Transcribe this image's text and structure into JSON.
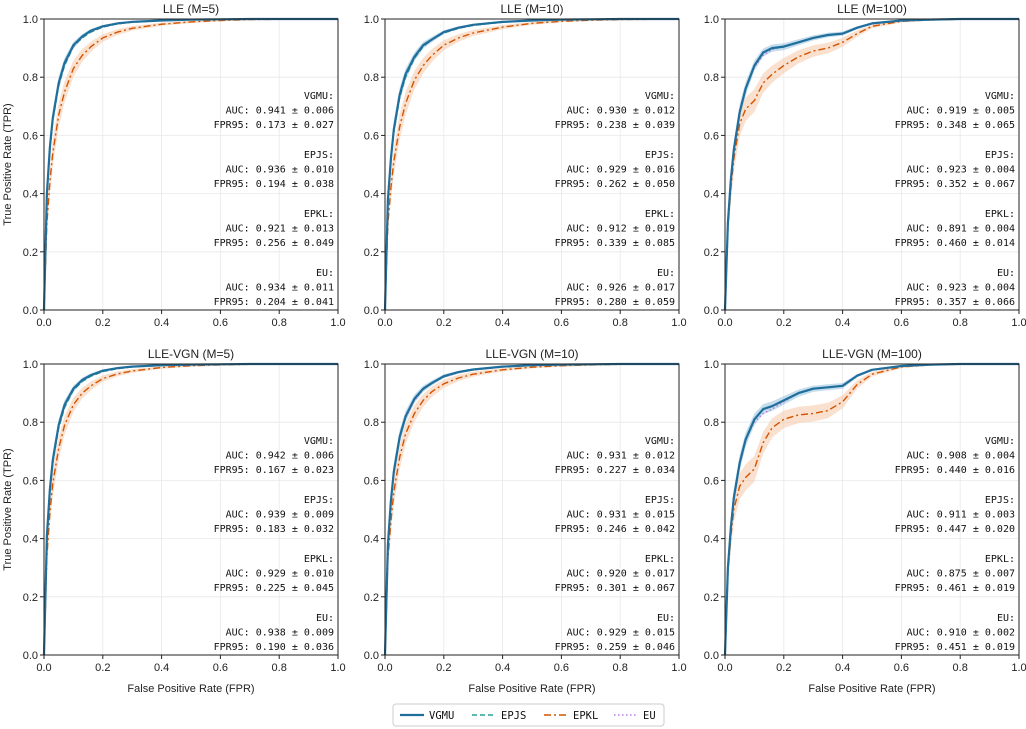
{
  "figure": {
    "legend": [
      {
        "key": "VGMU",
        "label": "VGMU",
        "color": "#1f6e9c",
        "dash": "",
        "width": 2.2
      },
      {
        "key": "EPJS",
        "label": "EPJS",
        "color": "#2aa198",
        "dash": "5,3",
        "width": 1.4
      },
      {
        "key": "EPKL",
        "label": "EPKL",
        "color": "#d35400",
        "dash": "7,3,2,3",
        "width": 1.4
      },
      {
        "key": "EU",
        "label": "EU",
        "color": "#b57edc",
        "dash": "1.5,2.5",
        "width": 1.4
      }
    ],
    "band_colors": {
      "VGMU": "#7fb3d5",
      "EPKL": "#f5c6a5"
    }
  },
  "chart_data": [
    {
      "type": "line",
      "title": "LLE (M=5)",
      "xlabel": "",
      "ylabel": "True Positive Rate (TPR)",
      "xlim": [
        0,
        1
      ],
      "ylim": [
        0,
        1
      ],
      "xticks": [
        "0.0",
        "0.2",
        "0.4",
        "0.6",
        "0.8",
        "1.0"
      ],
      "yticks": [
        "0.0",
        "0.2",
        "0.4",
        "0.6",
        "0.8",
        "1.0"
      ],
      "grid": true,
      "x": [
        0,
        0.01,
        0.02,
        0.03,
        0.05,
        0.07,
        0.1,
        0.13,
        0.16,
        0.2,
        0.25,
        0.3,
        0.4,
        0.5,
        0.6,
        0.7,
        0.8,
        0.9,
        1.0
      ],
      "series": [
        {
          "name": "VGMU",
          "values": [
            0,
            0.4,
            0.56,
            0.66,
            0.78,
            0.85,
            0.91,
            0.94,
            0.96,
            0.975,
            0.985,
            0.99,
            0.995,
            0.998,
            0.999,
            1,
            1,
            1,
            1
          ]
        },
        {
          "name": "EPJS",
          "values": [
            0,
            0.39,
            0.55,
            0.65,
            0.77,
            0.84,
            0.905,
            0.935,
            0.955,
            0.972,
            0.983,
            0.989,
            0.995,
            0.998,
            0.999,
            1,
            1,
            1,
            1
          ]
        },
        {
          "name": "EPKL",
          "values": [
            0,
            0.3,
            0.44,
            0.54,
            0.67,
            0.75,
            0.83,
            0.875,
            0.905,
            0.935,
            0.955,
            0.968,
            0.982,
            0.99,
            0.995,
            0.998,
            0.999,
            1,
            1
          ]
        },
        {
          "name": "EU",
          "values": [
            0,
            0.4,
            0.555,
            0.655,
            0.775,
            0.845,
            0.905,
            0.935,
            0.955,
            0.972,
            0.983,
            0.989,
            0.995,
            0.998,
            0.999,
            1,
            1,
            1,
            1
          ]
        }
      ],
      "stats": [
        {
          "method": "VGMU:",
          "auc": "AUC:   0.941 ± 0.006",
          "fpr95": "FPR95: 0.173 ± 0.027"
        },
        {
          "method": "EPJS:",
          "auc": "AUC:   0.936 ± 0.010",
          "fpr95": "FPR95: 0.194 ± 0.038"
        },
        {
          "method": "EPKL:",
          "auc": "AUC:   0.921 ± 0.013",
          "fpr95": "FPR95: 0.256 ± 0.049"
        },
        {
          "method": "EU:",
          "auc": "AUC:   0.934 ± 0.011",
          "fpr95": "FPR95: 0.204 ± 0.041"
        }
      ]
    },
    {
      "type": "line",
      "title": "LLE (M=10)",
      "xlabel": "",
      "ylabel": "",
      "xlim": [
        0,
        1
      ],
      "ylim": [
        0,
        1
      ],
      "xticks": [
        "0.0",
        "0.2",
        "0.4",
        "0.6",
        "0.8",
        "1.0"
      ],
      "yticks": [
        "0.0",
        "0.2",
        "0.4",
        "0.6",
        "0.8",
        "1.0"
      ],
      "grid": true,
      "x": [
        0,
        0.01,
        0.02,
        0.03,
        0.05,
        0.07,
        0.1,
        0.13,
        0.16,
        0.2,
        0.25,
        0.3,
        0.4,
        0.5,
        0.6,
        0.7,
        0.8,
        0.9,
        1.0
      ],
      "series": [
        {
          "name": "VGMU",
          "values": [
            0,
            0.38,
            0.52,
            0.62,
            0.74,
            0.81,
            0.87,
            0.91,
            0.93,
            0.955,
            0.97,
            0.98,
            0.99,
            0.995,
            0.998,
            0.999,
            1,
            1,
            1
          ]
        },
        {
          "name": "EPJS",
          "values": [
            0,
            0.37,
            0.51,
            0.61,
            0.73,
            0.8,
            0.865,
            0.905,
            0.93,
            0.952,
            0.968,
            0.978,
            0.989,
            0.995,
            0.998,
            0.999,
            1,
            1,
            1
          ]
        },
        {
          "name": "EPKL",
          "values": [
            0,
            0.3,
            0.42,
            0.51,
            0.63,
            0.71,
            0.79,
            0.84,
            0.875,
            0.91,
            0.935,
            0.952,
            0.972,
            0.985,
            0.992,
            0.996,
            0.998,
            0.999,
            1
          ]
        },
        {
          "name": "EU",
          "values": [
            0,
            0.37,
            0.515,
            0.615,
            0.735,
            0.805,
            0.865,
            0.905,
            0.928,
            0.952,
            0.968,
            0.978,
            0.989,
            0.995,
            0.998,
            0.999,
            1,
            1,
            1
          ]
        }
      ],
      "stats": [
        {
          "method": "VGMU:",
          "auc": "AUC:   0.930 ± 0.012",
          "fpr95": "FPR95: 0.238 ± 0.039"
        },
        {
          "method": "EPJS:",
          "auc": "AUC:   0.929 ± 0.016",
          "fpr95": "FPR95: 0.262 ± 0.050"
        },
        {
          "method": "EPKL:",
          "auc": "AUC:   0.912 ± 0.019",
          "fpr95": "FPR95: 0.339 ± 0.085"
        },
        {
          "method": "EU:",
          "auc": "AUC:   0.926 ± 0.017",
          "fpr95": "FPR95: 0.280 ± 0.059"
        }
      ]
    },
    {
      "type": "line",
      "title": "LLE (M=100)",
      "xlabel": "",
      "ylabel": "",
      "xlim": [
        0,
        1
      ],
      "ylim": [
        0,
        1
      ],
      "xticks": [
        "0.0",
        "0.2",
        "0.4",
        "0.6",
        "0.8",
        "1.0"
      ],
      "yticks": [
        "0.0",
        "0.2",
        "0.4",
        "0.6",
        "0.8",
        "1.0"
      ],
      "grid": true,
      "x": [
        0,
        0.01,
        0.02,
        0.03,
        0.05,
        0.07,
        0.1,
        0.13,
        0.16,
        0.2,
        0.25,
        0.3,
        0.35,
        0.4,
        0.45,
        0.5,
        0.6,
        0.7,
        0.8,
        0.9,
        1.0
      ],
      "series": [
        {
          "name": "VGMU",
          "values": [
            0,
            0.3,
            0.45,
            0.55,
            0.68,
            0.76,
            0.84,
            0.885,
            0.9,
            0.905,
            0.92,
            0.935,
            0.945,
            0.95,
            0.97,
            0.985,
            0.995,
            0.998,
            1,
            1,
            1
          ]
        },
        {
          "name": "EPJS",
          "values": [
            0,
            0.3,
            0.45,
            0.55,
            0.68,
            0.76,
            0.84,
            0.885,
            0.9,
            0.905,
            0.92,
            0.935,
            0.945,
            0.95,
            0.97,
            0.985,
            0.995,
            0.998,
            1,
            1,
            1
          ]
        },
        {
          "name": "EPKL",
          "values": [
            0,
            0.28,
            0.42,
            0.52,
            0.64,
            0.69,
            0.72,
            0.78,
            0.81,
            0.84,
            0.87,
            0.89,
            0.9,
            0.92,
            0.95,
            0.975,
            0.992,
            0.997,
            0.999,
            1,
            1
          ]
        },
        {
          "name": "EU",
          "values": [
            0,
            0.31,
            0.46,
            0.56,
            0.685,
            0.76,
            0.835,
            0.875,
            0.895,
            0.905,
            0.92,
            0.935,
            0.945,
            0.95,
            0.97,
            0.985,
            0.995,
            0.998,
            1,
            1,
            1
          ]
        }
      ],
      "stats": [
        {
          "method": "VGMU:",
          "auc": "AUC:   0.919 ± 0.005",
          "fpr95": "FPR95: 0.348 ± 0.065"
        },
        {
          "method": "EPJS:",
          "auc": "AUC:   0.923 ± 0.004",
          "fpr95": "FPR95: 0.352 ± 0.067"
        },
        {
          "method": "EPKL:",
          "auc": "AUC:   0.891 ± 0.004",
          "fpr95": "FPR95: 0.460 ± 0.014"
        },
        {
          "method": "EU:",
          "auc": "AUC:   0.923 ± 0.004",
          "fpr95": "FPR95: 0.357 ± 0.066"
        }
      ]
    },
    {
      "type": "line",
      "title": "LLE-VGN (M=5)",
      "xlabel": "False Positive Rate (FPR)",
      "ylabel": "True Positive Rate (TPR)",
      "xlim": [
        0,
        1
      ],
      "ylim": [
        0,
        1
      ],
      "xticks": [
        "0.0",
        "0.2",
        "0.4",
        "0.6",
        "0.8",
        "1.0"
      ],
      "yticks": [
        "0.0",
        "0.2",
        "0.4",
        "0.6",
        "0.8",
        "1.0"
      ],
      "grid": true,
      "x": [
        0,
        0.01,
        0.02,
        0.03,
        0.05,
        0.07,
        0.1,
        0.13,
        0.16,
        0.2,
        0.25,
        0.3,
        0.4,
        0.5,
        0.6,
        0.7,
        0.8,
        0.9,
        1.0
      ],
      "series": [
        {
          "name": "VGMU",
          "values": [
            0,
            0.41,
            0.57,
            0.67,
            0.79,
            0.86,
            0.915,
            0.945,
            0.962,
            0.977,
            0.986,
            0.991,
            0.996,
            0.998,
            0.999,
            1,
            1,
            1,
            1
          ]
        },
        {
          "name": "EPJS",
          "values": [
            0,
            0.4,
            0.56,
            0.66,
            0.78,
            0.85,
            0.91,
            0.94,
            0.958,
            0.974,
            0.984,
            0.99,
            0.995,
            0.998,
            0.999,
            1,
            1,
            1,
            1
          ]
        },
        {
          "name": "EPKL",
          "values": [
            0,
            0.34,
            0.49,
            0.59,
            0.71,
            0.79,
            0.86,
            0.9,
            0.925,
            0.95,
            0.966,
            0.976,
            0.988,
            0.994,
            0.997,
            0.999,
            1,
            1,
            1
          ]
        },
        {
          "name": "EU",
          "values": [
            0,
            0.41,
            0.565,
            0.665,
            0.785,
            0.855,
            0.91,
            0.94,
            0.958,
            0.974,
            0.984,
            0.99,
            0.995,
            0.998,
            0.999,
            1,
            1,
            1,
            1
          ]
        }
      ],
      "stats": [
        {
          "method": "VGMU:",
          "auc": "AUC:   0.942 ± 0.006",
          "fpr95": "FPR95: 0.167 ± 0.023"
        },
        {
          "method": "EPJS:",
          "auc": "AUC:   0.939 ± 0.009",
          "fpr95": "FPR95: 0.183 ± 0.032"
        },
        {
          "method": "EPKL:",
          "auc": "AUC:   0.929 ± 0.010",
          "fpr95": "FPR95: 0.225 ± 0.045"
        },
        {
          "method": "EU:",
          "auc": "AUC:   0.938 ± 0.009",
          "fpr95": "FPR95: 0.190 ± 0.036"
        }
      ]
    },
    {
      "type": "line",
      "title": "LLE-VGN (M=10)",
      "xlabel": "False Positive Rate (FPR)",
      "ylabel": "",
      "xlim": [
        0,
        1
      ],
      "ylim": [
        0,
        1
      ],
      "xticks": [
        "0.0",
        "0.2",
        "0.4",
        "0.6",
        "0.8",
        "1.0"
      ],
      "yticks": [
        "0.0",
        "0.2",
        "0.4",
        "0.6",
        "0.8",
        "1.0"
      ],
      "grid": true,
      "x": [
        0,
        0.01,
        0.02,
        0.03,
        0.05,
        0.07,
        0.1,
        0.13,
        0.16,
        0.2,
        0.25,
        0.3,
        0.4,
        0.5,
        0.6,
        0.7,
        0.8,
        0.9,
        1.0
      ],
      "series": [
        {
          "name": "VGMU",
          "values": [
            0,
            0.38,
            0.53,
            0.63,
            0.75,
            0.82,
            0.88,
            0.915,
            0.935,
            0.958,
            0.972,
            0.981,
            0.991,
            0.996,
            0.998,
            0.999,
            1,
            1,
            1
          ]
        },
        {
          "name": "EPJS",
          "values": [
            0,
            0.38,
            0.53,
            0.63,
            0.75,
            0.82,
            0.878,
            0.913,
            0.934,
            0.956,
            0.971,
            0.98,
            0.99,
            0.995,
            0.998,
            0.999,
            1,
            1,
            1
          ]
        },
        {
          "name": "EPKL",
          "values": [
            0,
            0.33,
            0.46,
            0.56,
            0.68,
            0.76,
            0.83,
            0.875,
            0.905,
            0.932,
            0.952,
            0.965,
            0.98,
            0.989,
            0.994,
            0.997,
            0.999,
            1,
            1
          ]
        },
        {
          "name": "EU",
          "values": [
            0,
            0.38,
            0.525,
            0.625,
            0.745,
            0.815,
            0.875,
            0.912,
            0.933,
            0.955,
            0.97,
            0.98,
            0.99,
            0.995,
            0.998,
            0.999,
            1,
            1,
            1
          ]
        }
      ],
      "stats": [
        {
          "method": "VGMU:",
          "auc": "AUC:   0.931 ± 0.012",
          "fpr95": "FPR95: 0.227 ± 0.034"
        },
        {
          "method": "EPJS:",
          "auc": "AUC:   0.931 ± 0.015",
          "fpr95": "FPR95: 0.246 ± 0.042"
        },
        {
          "method": "EPKL:",
          "auc": "AUC:   0.920 ± 0.017",
          "fpr95": "FPR95: 0.301 ± 0.067"
        },
        {
          "method": "EU:",
          "auc": "AUC:   0.929 ± 0.015",
          "fpr95": "FPR95: 0.259 ± 0.046"
        }
      ]
    },
    {
      "type": "line",
      "title": "LLE-VGN (M=100)",
      "xlabel": "False Positive Rate (FPR)",
      "ylabel": "",
      "xlim": [
        0,
        1
      ],
      "ylim": [
        0,
        1
      ],
      "xticks": [
        "0.0",
        "0.2",
        "0.4",
        "0.6",
        "0.8",
        "1.0"
      ],
      "yticks": [
        "0.0",
        "0.2",
        "0.4",
        "0.6",
        "0.8",
        "1.0"
      ],
      "grid": true,
      "x": [
        0,
        0.01,
        0.02,
        0.03,
        0.05,
        0.07,
        0.1,
        0.13,
        0.16,
        0.2,
        0.25,
        0.3,
        0.35,
        0.4,
        0.45,
        0.5,
        0.6,
        0.7,
        0.8,
        0.9,
        1.0
      ],
      "series": [
        {
          "name": "VGMU",
          "values": [
            0,
            0.3,
            0.44,
            0.54,
            0.66,
            0.74,
            0.81,
            0.845,
            0.855,
            0.875,
            0.9,
            0.915,
            0.92,
            0.925,
            0.96,
            0.98,
            0.993,
            0.998,
            1,
            1,
            1
          ]
        },
        {
          "name": "EPJS",
          "values": [
            0,
            0.3,
            0.44,
            0.54,
            0.66,
            0.74,
            0.81,
            0.845,
            0.855,
            0.875,
            0.9,
            0.915,
            0.92,
            0.925,
            0.96,
            0.98,
            0.993,
            0.998,
            1,
            1,
            1
          ]
        },
        {
          "name": "EPKL",
          "values": [
            0,
            0.28,
            0.41,
            0.5,
            0.58,
            0.61,
            0.64,
            0.73,
            0.78,
            0.81,
            0.825,
            0.83,
            0.84,
            0.87,
            0.93,
            0.965,
            0.99,
            0.997,
            0.999,
            1,
            1
          ]
        },
        {
          "name": "EU",
          "values": [
            0,
            0.31,
            0.45,
            0.55,
            0.665,
            0.74,
            0.8,
            0.83,
            0.845,
            0.87,
            0.9,
            0.915,
            0.92,
            0.925,
            0.96,
            0.98,
            0.993,
            0.998,
            1,
            1,
            1
          ]
        }
      ],
      "stats": [
        {
          "method": "VGMU:",
          "auc": "AUC:   0.908 ± 0.004",
          "fpr95": "FPR95: 0.440 ± 0.016"
        },
        {
          "method": "EPJS:",
          "auc": "AUC:   0.911 ± 0.003",
          "fpr95": "FPR95: 0.447 ± 0.020"
        },
        {
          "method": "EPKL:",
          "auc": "AUC:   0.875 ± 0.007",
          "fpr95": "FPR95: 0.461 ± 0.019"
        },
        {
          "method": "EU:",
          "auc": "AUC:   0.910 ± 0.002",
          "fpr95": "FPR95: 0.451 ± 0.019"
        }
      ]
    }
  ]
}
